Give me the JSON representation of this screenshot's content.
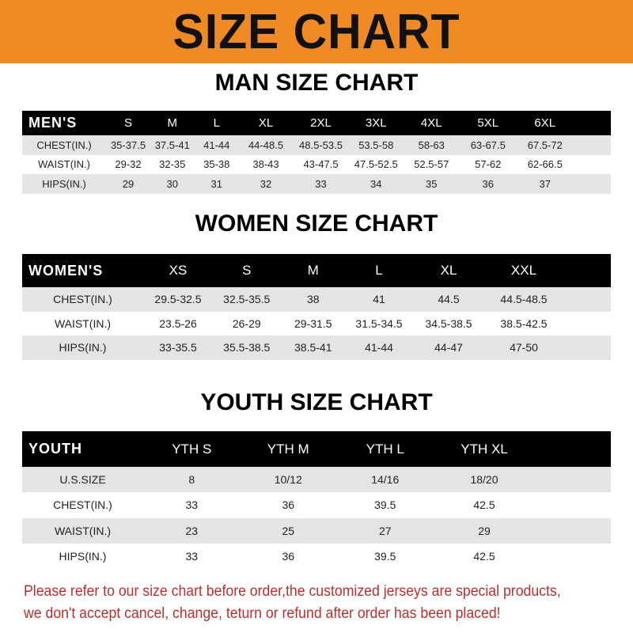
{
  "header": {
    "title": "SIZE CHART"
  },
  "men": {
    "title": "MAN SIZE CHART",
    "columns": [
      "MEN'S",
      "S",
      "M",
      "L",
      "XL",
      "2XL",
      "3XL",
      "4XL",
      "5XL",
      "6XL"
    ],
    "rows": [
      [
        "CHEST(IN.)",
        "35-37.5",
        "37.5-41",
        "41-44",
        "44-48.5",
        "48.5-53.5",
        "53.5-58",
        "58-63",
        "63-67.5",
        "67.5-72"
      ],
      [
        "WAIST(IN.)",
        "29-32",
        "32-35",
        "35-38",
        "38-43",
        "43-47.5",
        "47.5-52.5",
        "52.5-57",
        "57-62",
        "62-66.5"
      ],
      [
        "HIPS(IN.)",
        "29",
        "30",
        "31",
        "32",
        "33",
        "34",
        "35",
        "36",
        "37"
      ]
    ]
  },
  "women": {
    "title": "WOMEN SIZE CHART",
    "columns": [
      "WOMEN'S",
      "XS",
      "S",
      "M",
      "L",
      "XL",
      "XXL"
    ],
    "rows": [
      [
        "CHEST(IN.)",
        "29.5-32.5",
        "32.5-35.5",
        "38",
        "41",
        "44.5",
        "44.5-48.5"
      ],
      [
        "WAIST(IN.)",
        "23.5-26",
        "26-29",
        "29-31.5",
        "31.5-34.5",
        "34.5-38.5",
        "38.5-42.5"
      ],
      [
        "HIPS(IN.)",
        "33-35.5",
        "35.5-38.5",
        "38.5-41",
        "41-44",
        "44-47",
        "47-50"
      ]
    ]
  },
  "youth": {
    "title": "YOUTH SIZE CHART",
    "columns": [
      "YOUTH",
      "YTH S",
      "YTH M",
      "YTH L",
      "YTH XL"
    ],
    "rows": [
      [
        "U.S.SIZE",
        "8",
        "10/12",
        "14/16",
        "18/20"
      ],
      [
        "CHEST(IN.)",
        "33",
        "36",
        "39.5",
        "42.5"
      ],
      [
        "WAIST(IN.)",
        "23",
        "25",
        "27",
        "29"
      ],
      [
        "HIPS(IN.)",
        "33",
        "36",
        "39.5",
        "42.5"
      ]
    ]
  },
  "note": {
    "line1": "Please refer to our size chart before order,the customized jerseys are special products,",
    "line2": "we don't accept cancel, change, teturn or refund after order has been placed!"
  },
  "colors": {
    "banner": "#f08a24",
    "header_row": "#000000",
    "stripe": "#e4e4e4",
    "note": "#b8302e"
  }
}
